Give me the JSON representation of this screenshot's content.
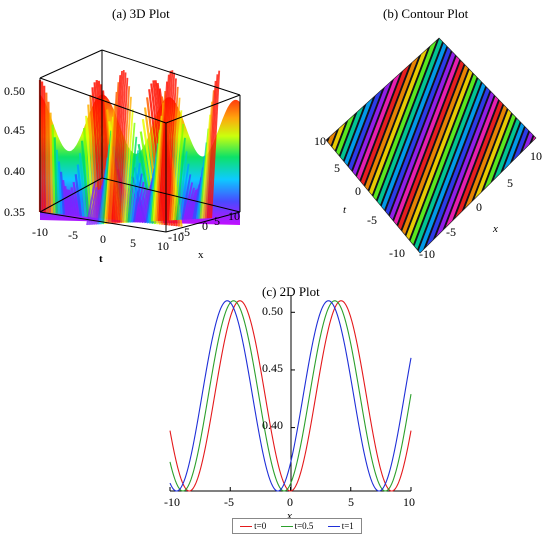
{
  "chart_data": [
    {
      "type": "surface3d",
      "title": "(a) 3D Plot",
      "xlabel": "t",
      "ylabel": "x",
      "t_ticks": [
        "-10",
        "-5",
        "0",
        "5",
        "10"
      ],
      "x_ticks": [
        "-10",
        "-5",
        "0",
        "5",
        "10"
      ],
      "z_ticks": [
        "0.35",
        "0.40",
        "0.45",
        "0.50"
      ],
      "zlim": [
        0.345,
        0.51
      ],
      "colormap": "rainbow"
    },
    {
      "type": "heatmap",
      "title": "(b) Contour Plot",
      "xlabel": "x",
      "ylabel": "t",
      "t_ticks": [
        "-10",
        "-5",
        "0",
        "5",
        "10"
      ],
      "x_ticks": [
        "-10",
        "-5",
        "0",
        "5",
        "10"
      ],
      "colormap": "rainbow"
    },
    {
      "type": "line",
      "title": "(c) 2D Plot",
      "xlabel": "x",
      "xlim": [
        -10,
        10
      ],
      "ylim": [
        0.345,
        0.515
      ],
      "x_ticks": [
        "-10",
        "-5",
        "0",
        "5",
        "10"
      ],
      "y_ticks": [
        "0.40",
        "0.45",
        "0.50"
      ],
      "y_tick_values": [
        0.4,
        0.45,
        0.5
      ],
      "model": {
        "base": 0.345,
        "amplitude": 0.165,
        "period": 8.4,
        "peak_x_at_t0": 4.2,
        "shift_per_unit_t": 1.05
      },
      "series": [
        {
          "name": "t=0",
          "t": 0,
          "color": "#e41a1c"
        },
        {
          "name": "t=0.5",
          "t": 0.5,
          "color": "#2ca02c"
        },
        {
          "name": "t=1",
          "t": 1,
          "color": "#1f2fd8"
        }
      ],
      "legend": "bottom"
    }
  ]
}
